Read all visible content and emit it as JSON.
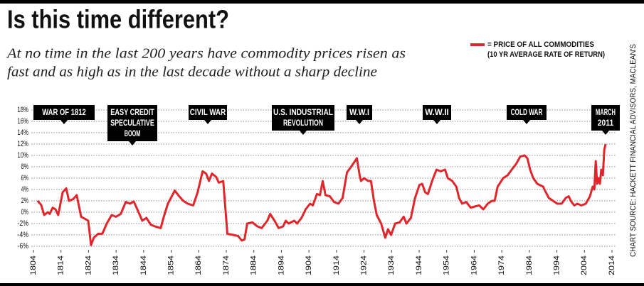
{
  "chart_data": {
    "type": "line",
    "title": "Is this time different?",
    "subtitle": [
      "At no time in the last 200 years have commodity prices risen as",
      "fast and as high as in the last decade without a sharp decline"
    ],
    "source": "CHART SOURCE: HACKETT FINANCIAL ADVISORS, MACLEAN'S",
    "legend_note": "(10 YR AVERAGE RATE OF RETURN)",
    "annotations": [
      {
        "lines": [
          "WAR OF 1812"
        ]
      },
      {
        "lines": [
          "EASY CREDIT",
          "SPECULATIVE",
          "BOOM"
        ]
      },
      {
        "lines": [
          "CIVIL WAR"
        ]
      },
      {
        "lines": [
          "U.S. INDUSTRIAL",
          "REVOLUTION"
        ]
      },
      {
        "lines": [
          "W.W.I"
        ]
      },
      {
        "lines": [
          "W.W.II"
        ]
      },
      {
        "lines": [
          "COLD WAR"
        ]
      },
      {
        "lines": [
          "MARCH",
          "2011"
        ]
      }
    ],
    "x": [
      1805.5,
      1806.8,
      1807.9,
      1809.2,
      1809.9,
      1811,
      1812,
      1813,
      1814.6,
      1815.9,
      1816.9,
      1818.4,
      1819.7,
      1821.3,
      1822.8,
      1823.9,
      1824.9,
      1825.9,
      1827.5,
      1829,
      1830.6,
      1832.4,
      1833.9,
      1835.7,
      1837.5,
      1839.1,
      1840.4,
      1841.7,
      1843.5,
      1845,
      1846.6,
      1848.1,
      1850.2,
      1851.2,
      1852.8,
      1855.3,
      1856.9,
      1858.4,
      1860,
      1862,
      1863.6,
      1865.4,
      1866.7,
      1867.7,
      1868.8,
      1870.3,
      1871.3,
      1872.9,
      1874.4,
      1876.5,
      1878.3,
      1879.6,
      1880.6,
      1881.6,
      1883.5,
      1885.3,
      1886.8,
      1888.9,
      1889.9,
      1891.5,
      1893,
      1894.6,
      1895.6,
      1896.6,
      1898.7,
      1899.7,
      1901.3,
      1902.8,
      1904.4,
      1905.4,
      1906.9,
      1908,
      1909,
      1910,
      1911.6,
      1913.1,
      1914.7,
      1916.2,
      1917.8,
      1919.3,
      1921.4,
      1922.4,
      1922.9,
      1924,
      1925.5,
      1926.5,
      1927.6,
      1928.6,
      1930.2,
      1931.7,
      1932.7,
      1933.8,
      1935.3,
      1936.9,
      1938.4,
      1939.4,
      1941,
      1942.5,
      1944.1,
      1945.1,
      1946.2,
      1947.2,
      1948.7,
      1950.3,
      1951.8,
      1953.4,
      1954.4,
      1956,
      1957.5,
      1958.5,
      1959.6,
      1961.1,
      1962.7,
      1964.2,
      1965.8,
      1967.3,
      1968.9,
      1970.4,
      1971.4,
      1972.5,
      1974.5,
      1976.1,
      1977.6,
      1979.2,
      1980.7,
      1982.3,
      1983.3,
      1984.3,
      1985.4,
      1986.9,
      1989,
      1990,
      1991.1,
      1992.6,
      1994.1,
      1995.7,
      1997.2,
      1998.3,
      1999.3,
      2000.3,
      2001.4,
      2002.9,
      2004.5,
      2006,
      2007,
      2007.6,
      2008.1,
      2008.6,
      2009.1,
      2009.6,
      2010.1,
      2010.7,
      2011.2,
      2011.7
    ],
    "series": [
      {
        "name": "= PRICE OF ALL COMMODITIES",
        "color": "#e0262b",
        "values": [
          2,
          1.3,
          -0.5,
          0,
          -0.3,
          0.8,
          0.5,
          -0.5,
          3.5,
          4.2,
          2,
          2.3,
          3,
          -0.8,
          -1.2,
          -1.5,
          -5.8,
          -4.5,
          -3.8,
          -3.8,
          -2,
          -0.5,
          -0.8,
          -0.3,
          1.8,
          1.5,
          1.9,
          0.5,
          -1.5,
          -1,
          -2.2,
          -2.5,
          -2.8,
          -1,
          1.5,
          3.8,
          2.8,
          2,
          1.5,
          1.2,
          3.5,
          7.2,
          6.8,
          5.5,
          6.8,
          6.2,
          5.2,
          5.5,
          -3.8,
          -4,
          -4.2,
          -5,
          -4.8,
          -2,
          -1.8,
          -2.5,
          -2.8,
          -1.5,
          -0.3,
          -1.5,
          -2.8,
          -2.5,
          -1.5,
          -2,
          -1.5,
          -2,
          -1,
          0.5,
          1.5,
          1.2,
          3.2,
          3,
          5.5,
          3,
          2.8,
          1.8,
          1.5,
          2.5,
          7,
          8,
          9.5,
          6.5,
          5.5,
          6,
          5.5,
          5.5,
          2,
          -0.5,
          -2,
          -4.5,
          -3,
          -4,
          -2,
          -1.8,
          -0.8,
          -2,
          -1,
          2.5,
          4.8,
          5,
          3.5,
          3.2,
          5.5,
          7.5,
          7.2,
          7.5,
          6,
          5.5,
          4.5,
          2.5,
          1.5,
          1.8,
          0.8,
          1,
          1.2,
          0.5,
          1.5,
          2,
          2,
          4.5,
          6,
          6.5,
          7.5,
          8.5,
          9.8,
          10,
          9.5,
          7.5,
          6,
          5,
          4.5,
          3.5,
          2.5,
          2,
          1.5,
          1.5,
          2.5,
          2.8,
          1.8,
          1.2,
          1.5,
          1.2,
          1.5,
          2.8,
          4.5,
          4,
          9,
          5,
          6,
          5,
          7.5,
          6.5,
          11,
          12
        ]
      }
    ],
    "xlim": [
      1804,
      2014
    ],
    "xticks": [
      1804,
      1814,
      1824,
      1834,
      1844,
      1854,
      1864,
      1874,
      1884,
      1894,
      1904,
      1914,
      1924,
      1934,
      1944,
      1954,
      1964,
      1974,
      1984,
      1994,
      2004,
      2014
    ],
    "ylim": [
      -6,
      18
    ],
    "yticks": [
      {
        "value": -6,
        "label": "-6%"
      },
      {
        "value": -4,
        "label": "-4%"
      },
      {
        "value": -2,
        "label": "-2%"
      },
      {
        "value": 0,
        "label": "0%"
      },
      {
        "value": 2,
        "label": "2%"
      },
      {
        "value": 4,
        "label": "4%"
      },
      {
        "value": 6,
        "label": "6%"
      },
      {
        "value": 8,
        "label": "8%"
      },
      {
        "value": 10,
        "label": "10%"
      },
      {
        "value": 12,
        "label": "12%"
      },
      {
        "value": 14,
        "label": "14%"
      },
      {
        "value": 16,
        "label": "16%"
      },
      {
        "value": 18,
        "label": "18%"
      }
    ],
    "grid": true
  }
}
